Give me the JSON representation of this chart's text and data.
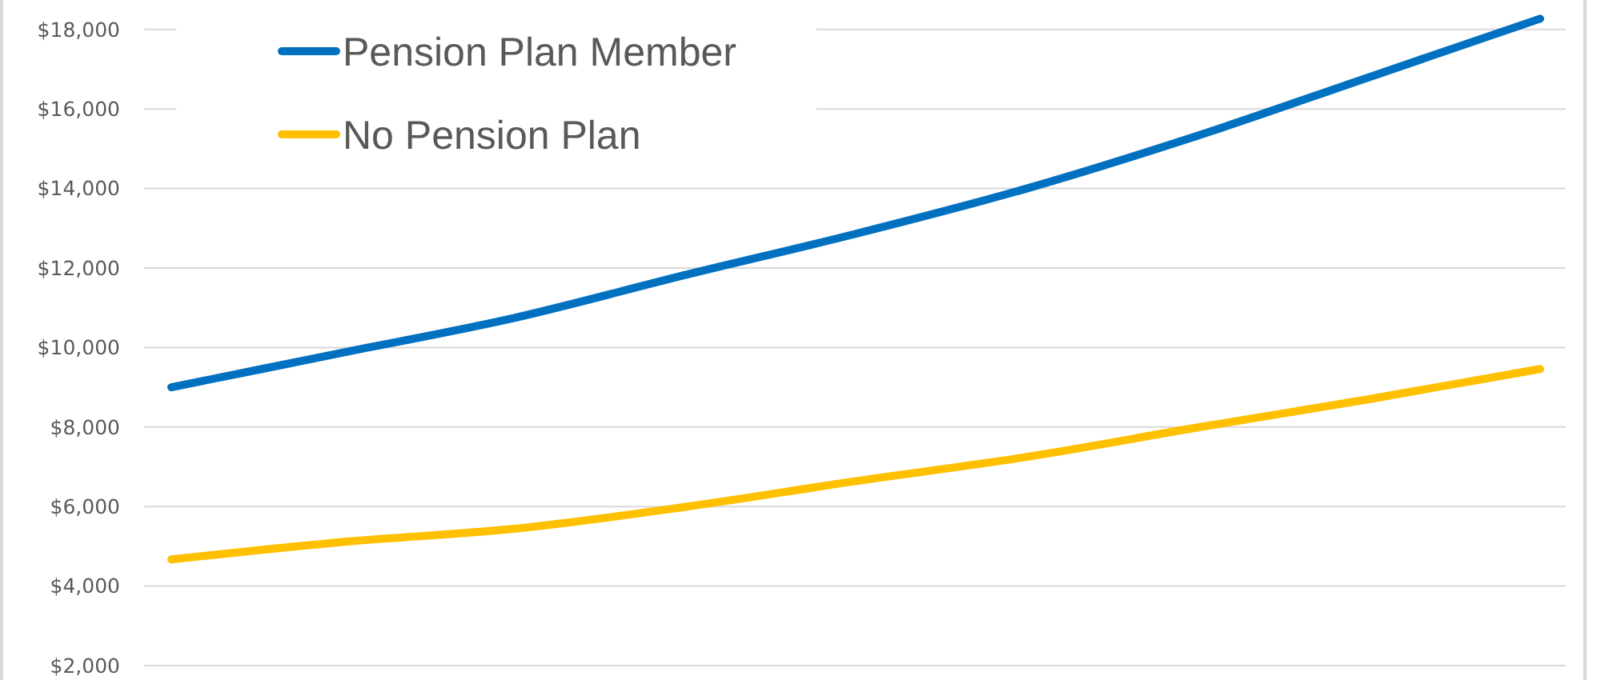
{
  "chart_data": {
    "type": "line",
    "categories": [
      null,
      null,
      null,
      null,
      null,
      null,
      null,
      null,
      null
    ],
    "series": [
      {
        "name": "Pension Plan Member",
        "color": "#0070c0",
        "values": [
          9000,
          9870,
          10740,
          11820,
          12860,
          14000,
          15330,
          16800,
          18270
        ]
      },
      {
        "name": "No Pension Plan",
        "color": "#ffc000",
        "values": [
          4670,
          5110,
          5440,
          5990,
          6640,
          7250,
          7990,
          8700,
          9460
        ]
      }
    ],
    "ylim": [
      2000,
      18700
    ],
    "yticks": [
      {
        "value": 2000,
        "label": "$2,000"
      },
      {
        "value": 4000,
        "label": "$4,000"
      },
      {
        "value": 6000,
        "label": "$6,000"
      },
      {
        "value": 8000,
        "label": "$8,000"
      },
      {
        "value": 10000,
        "label": "$10,000"
      },
      {
        "value": 12000,
        "label": "$12,000"
      },
      {
        "value": 14000,
        "label": "$14,000"
      },
      {
        "value": 16000,
        "label": "$16,000"
      },
      {
        "value": 18000,
        "label": "$18,000"
      }
    ],
    "grid": "y",
    "legend": "top left",
    "tick_labels": "y",
    "marker": "none",
    "line_style": "solid"
  }
}
